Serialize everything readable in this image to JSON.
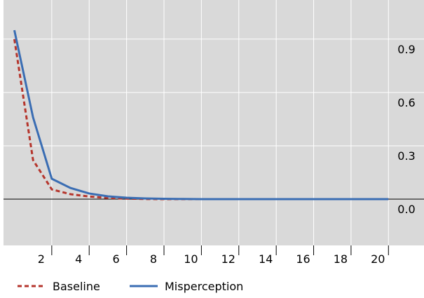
{
  "chart_data": {
    "type": "line",
    "x": [
      0,
      1,
      2,
      3,
      4,
      5,
      6,
      7,
      8,
      9,
      10,
      11,
      12,
      13,
      14,
      15,
      16,
      17,
      18,
      19,
      20
    ],
    "series": [
      {
        "name": "Baseline",
        "color": "#b5352c",
        "dash": true,
        "values": [
          0.9,
          0.22,
          0.055,
          0.028,
          0.015,
          0.007,
          0.003,
          0.001,
          0,
          0,
          0,
          0,
          0,
          0,
          0,
          0,
          0,
          0,
          0,
          0,
          0
        ]
      },
      {
        "name": "Misperception",
        "color": "#3a6db3",
        "dash": false,
        "values": [
          0.95,
          0.46,
          0.115,
          0.063,
          0.032,
          0.016,
          0.008,
          0.004,
          0.002,
          0.001,
          0,
          0,
          0,
          0,
          0,
          0,
          0,
          0,
          0,
          0,
          0
        ]
      }
    ],
    "xlim": [
      -0.58,
      21.9
    ],
    "xticks": [
      2,
      4,
      6,
      8,
      10,
      12,
      14,
      16,
      18,
      20
    ],
    "ylim": [
      -0.26,
      1.12
    ],
    "yticks": [
      {
        "value": 0,
        "label": "0.0"
      },
      0.3,
      0.6,
      0.9
    ],
    "grid": true,
    "legend": "bottom"
  }
}
